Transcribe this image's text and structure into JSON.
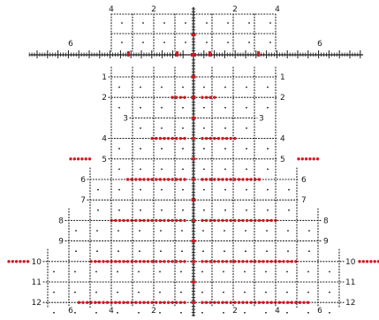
{
  "reticle": {
    "colors": {
      "ink": "#1a1a1a",
      "hold": "#d7141e",
      "dot": "#1a1a1a"
    },
    "top_labels": [
      "4",
      "2",
      "2",
      "4"
    ],
    "wing_labels": [
      "6",
      "6"
    ],
    "bottom_labels": [
      "6",
      "4",
      "2",
      "2",
      "4",
      "6"
    ],
    "rows": [
      {
        "label": "1",
        "dots": 0
      },
      {
        "label": "2",
        "dots": 4
      },
      {
        "label": "3",
        "dots": 0
      },
      {
        "label": "4",
        "dots": 9
      },
      {
        "label": "5",
        "dots": 0,
        "wing_dots": 6
      },
      {
        "label": "6",
        "dots": 15
      },
      {
        "label": "7",
        "dots": 0
      },
      {
        "label": "8",
        "dots": 19
      },
      {
        "label": "9",
        "dots": 0
      },
      {
        "label": "10",
        "dots": 24,
        "wing_dots": 6
      },
      {
        "label": "11",
        "dots": 0
      },
      {
        "label": "12",
        "dots": 27
      }
    ]
  }
}
